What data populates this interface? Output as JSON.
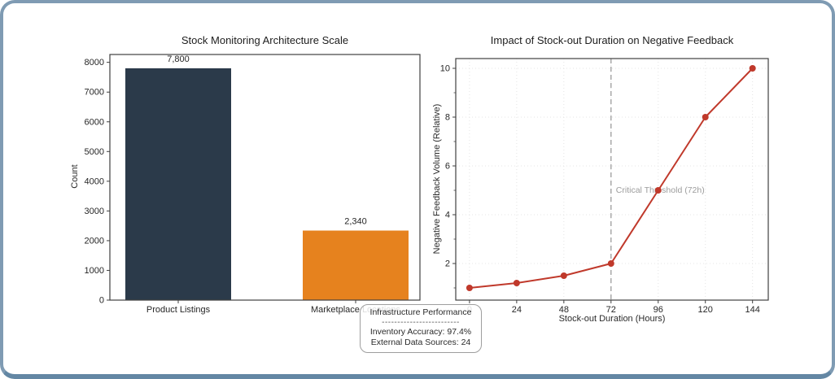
{
  "chart_data": [
    {
      "type": "bar",
      "title": "Stock Monitoring Architecture Scale",
      "categories": [
        "Product Listings",
        "Marketplace Locations"
      ],
      "values": [
        7800,
        2340
      ],
      "bar_labels": [
        "7,800",
        "2,340"
      ],
      "bar_colors": [
        "#2b3a4a",
        "#e6821e"
      ],
      "xlabel": "",
      "ylabel": "Count",
      "ylim": [
        0,
        8265
      ],
      "yticks": [
        0,
        1000,
        2000,
        3000,
        4000,
        5000,
        6000,
        7000,
        8000
      ],
      "grid": false
    },
    {
      "type": "line",
      "title": "Impact of Stock-out Duration on Negative Feedback",
      "x": [
        0,
        24,
        48,
        72,
        96,
        120,
        144
      ],
      "y": [
        1,
        1.2,
        1.5,
        2,
        5,
        8,
        10
      ],
      "xlabel": "Stock-out Duration (Hours)",
      "ylabel": "Negative Feedback Volume (Relative)",
      "xlim": [
        -7,
        152
      ],
      "ylim": [
        0.5,
        10.4
      ],
      "xticks": [
        0,
        24,
        48,
        72,
        96,
        120,
        144
      ],
      "yticks": [
        2,
        4,
        6,
        8,
        10
      ],
      "yticks_minor": [
        1,
        3,
        5,
        7,
        9
      ],
      "line_color": "#c0392b",
      "grid": true,
      "legend": null,
      "threshold": {
        "x": 72,
        "label": "Critical Threshold (72h)",
        "label_y": 5,
        "line_color": "#9c9c9c",
        "label_color": "#9c9c9c"
      }
    }
  ],
  "tooltip": {
    "title": "Infrastructure Performance",
    "divider": "-------------------------",
    "lines": [
      "Inventory Accuracy: 97.4%",
      "External Data Sources: 24"
    ]
  },
  "theme": {
    "card_border": "#7f9bb3",
    "spine_color": "#404040",
    "tick_label_color": "#262626",
    "grid_color": "#e4e4e4"
  }
}
